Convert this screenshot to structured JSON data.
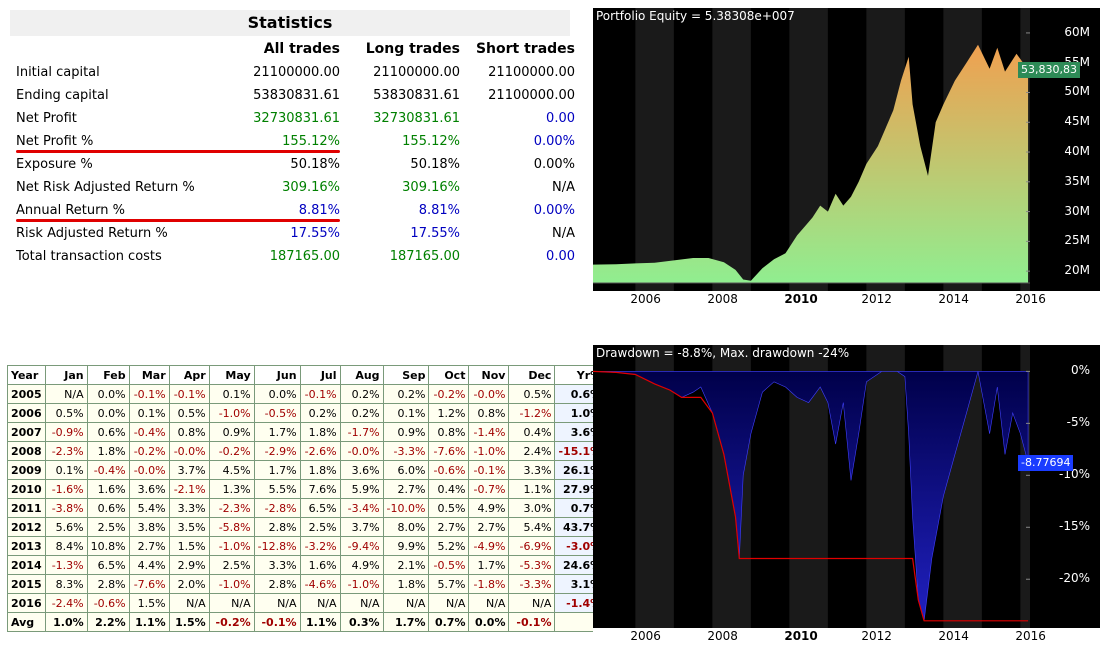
{
  "statistics": {
    "title": "Statistics",
    "headers": [
      "All trades",
      "Long trades",
      "Short trades"
    ],
    "rows": [
      {
        "label": "Initial capital",
        "values": [
          "21100000.00",
          "21100000.00",
          "21100000.00"
        ],
        "colors": [
          "black",
          "black",
          "black"
        ]
      },
      {
        "label": "Ending capital",
        "values": [
          "53830831.61",
          "53830831.61",
          "21100000.00"
        ],
        "colors": [
          "black",
          "black",
          "black"
        ]
      },
      {
        "label": "Net Profit",
        "values": [
          "32730831.61",
          "32730831.61",
          "0.00"
        ],
        "colors": [
          "green",
          "green",
          "blue"
        ]
      },
      {
        "label": "Net Profit %",
        "values": [
          "155.12%",
          "155.12%",
          "0.00%"
        ],
        "colors": [
          "green",
          "green",
          "blue"
        ]
      },
      {
        "label": "Exposure %",
        "values": [
          "50.18%",
          "50.18%",
          "0.00%"
        ],
        "colors": [
          "black",
          "black",
          "black"
        ]
      },
      {
        "label": "Net Risk Adjusted Return %",
        "values": [
          "309.16%",
          "309.16%",
          "N/A"
        ],
        "colors": [
          "green",
          "green",
          "black"
        ]
      },
      {
        "label": "Annual Return %",
        "values": [
          "8.81%",
          "8.81%",
          "0.00%"
        ],
        "colors": [
          "blue",
          "blue",
          "blue"
        ]
      },
      {
        "label": "Risk Adjusted Return %",
        "values": [
          "17.55%",
          "17.55%",
          "N/A"
        ],
        "colors": [
          "blue",
          "blue",
          "black"
        ]
      },
      {
        "label": "Total transaction costs",
        "values": [
          "187165.00",
          "187165.00",
          "0.00"
        ],
        "colors": [
          "green",
          "green",
          "blue"
        ]
      }
    ]
  },
  "monthly": {
    "headers": [
      "Year",
      "Jan",
      "Feb",
      "Mar",
      "Apr",
      "May",
      "Jun",
      "Jul",
      "Aug",
      "Sep",
      "Oct",
      "Nov",
      "Dec",
      "Yr%"
    ],
    "rows": [
      [
        "2005",
        "N/A",
        "0.0%",
        "-0.1%",
        "-0.1%",
        "0.1%",
        "0.0%",
        "-0.1%",
        "0.2%",
        "0.2%",
        "-0.2%",
        "-0.0%",
        "0.5%",
        "0.6%"
      ],
      [
        "2006",
        "0.5%",
        "0.0%",
        "0.1%",
        "0.5%",
        "-1.0%",
        "-0.5%",
        "0.2%",
        "0.2%",
        "0.1%",
        "1.2%",
        "0.8%",
        "-1.2%",
        "1.0%"
      ],
      [
        "2007",
        "-0.9%",
        "0.6%",
        "-0.4%",
        "0.8%",
        "0.9%",
        "1.7%",
        "1.8%",
        "-1.7%",
        "0.9%",
        "0.8%",
        "-1.4%",
        "0.4%",
        "3.6%"
      ],
      [
        "2008",
        "-2.3%",
        "1.8%",
        "-0.2%",
        "-0.0%",
        "-0.2%",
        "-2.9%",
        "-2.6%",
        "-0.0%",
        "-3.3%",
        "-7.6%",
        "-1.0%",
        "2.4%",
        "-15.1%"
      ],
      [
        "2009",
        "0.1%",
        "-0.4%",
        "-0.0%",
        "3.7%",
        "4.5%",
        "1.7%",
        "1.8%",
        "3.6%",
        "6.0%",
        "-0.6%",
        "-0.1%",
        "3.3%",
        "26.1%"
      ],
      [
        "2010",
        "-1.6%",
        "1.6%",
        "3.6%",
        "-2.1%",
        "1.3%",
        "5.5%",
        "7.6%",
        "5.9%",
        "2.7%",
        "0.4%",
        "-0.7%",
        "1.1%",
        "27.9%"
      ],
      [
        "2011",
        "-3.8%",
        "0.6%",
        "5.4%",
        "3.3%",
        "-2.3%",
        "-2.8%",
        "6.5%",
        "-3.4%",
        "-10.0%",
        "0.5%",
        "4.9%",
        "3.0%",
        "0.7%"
      ],
      [
        "2012",
        "5.6%",
        "2.5%",
        "3.8%",
        "3.5%",
        "-5.8%",
        "2.8%",
        "2.5%",
        "3.7%",
        "8.0%",
        "2.7%",
        "2.7%",
        "5.4%",
        "43.7%"
      ],
      [
        "2013",
        "8.4%",
        "10.8%",
        "2.7%",
        "1.5%",
        "-1.0%",
        "-12.8%",
        "-3.2%",
        "-9.4%",
        "9.9%",
        "5.2%",
        "-4.9%",
        "-6.9%",
        "-3.0%"
      ],
      [
        "2014",
        "-1.3%",
        "6.5%",
        "4.4%",
        "2.9%",
        "2.5%",
        "3.3%",
        "1.6%",
        "4.9%",
        "2.1%",
        "-0.5%",
        "1.7%",
        "-5.3%",
        "24.6%"
      ],
      [
        "2015",
        "8.3%",
        "2.8%",
        "-7.6%",
        "2.0%",
        "-1.0%",
        "2.8%",
        "-4.6%",
        "-1.0%",
        "1.8%",
        "5.7%",
        "-1.8%",
        "-3.3%",
        "3.1%"
      ],
      [
        "2016",
        "-2.4%",
        "-0.6%",
        "1.5%",
        "N/A",
        "N/A",
        "N/A",
        "N/A",
        "N/A",
        "N/A",
        "N/A",
        "N/A",
        "N/A",
        "-1.4%"
      ]
    ],
    "avg": [
      "Avg",
      "1.0%",
      "2.2%",
      "1.1%",
      "1.5%",
      "-0.2%",
      "-0.1%",
      "1.1%",
      "0.3%",
      "1.7%",
      "0.7%",
      "0.0%",
      "-0.1%",
      ""
    ]
  },
  "colors": {
    "equity_top": "#f0a050",
    "equity_bottom": "#90ee90",
    "drawdown_fill": "#0a0a8a",
    "max_dd_line": "#e00000",
    "last_value_equity": "#2e8b57",
    "last_value_dd": "#1a3cff"
  },
  "chart_data": [
    {
      "type": "area",
      "title": "Portfolio Equity = 5.38308e+007",
      "last_value_label": "53,830,83",
      "x_ticks": [
        "2006",
        "2008",
        "2010",
        "2012",
        "2014",
        "2016"
      ],
      "y_ticks": [
        "20M",
        "25M",
        "30M",
        "35M",
        "40M",
        "45M",
        "50M",
        "55M",
        "60M"
      ],
      "ylim": [
        17000000,
        61500000
      ],
      "xlim": [
        2004.9,
        2016.25
      ],
      "x": [
        2004.9,
        2005.5,
        2006.0,
        2006.5,
        2007.0,
        2007.5,
        2007.9,
        2008.3,
        2008.6,
        2008.8,
        2009.0,
        2009.3,
        2009.6,
        2009.9,
        2010.2,
        2010.4,
        2010.6,
        2010.8,
        2011.0,
        2011.2,
        2011.4,
        2011.6,
        2011.8,
        2012.0,
        2012.3,
        2012.5,
        2012.7,
        2012.9,
        2013.1,
        2013.2,
        2013.4,
        2013.6,
        2013.8,
        2014.0,
        2014.3,
        2014.6,
        2014.9,
        2015.2,
        2015.4,
        2015.6,
        2015.9,
        2016.2
      ],
      "series": [
        {
          "values": [
            21100000,
            21150000,
            21300000,
            21400000,
            21800000,
            22200000,
            22200000,
            21500000,
            20200000,
            18600000,
            18400000,
            20500000,
            22000000,
            23000000,
            26000000,
            27500000,
            29000000,
            31000000,
            30000000,
            33000000,
            31000000,
            32500000,
            35000000,
            38000000,
            41000000,
            44000000,
            47000000,
            52000000,
            56000000,
            48000000,
            41000000,
            36000000,
            45000000,
            48000000,
            52000000,
            55000000,
            58000000,
            54000000,
            57500000,
            53500000,
            56500000,
            53830831
          ]
        }
      ]
    },
    {
      "type": "area",
      "title": "Drawdown = -8.8%, Max. drawdown -24%",
      "last_value_label": "-8.77694",
      "x_ticks": [
        "2006",
        "2008",
        "2010",
        "2012",
        "2014",
        "2016"
      ],
      "y_ticks": [
        "0%",
        "-5%",
        "-10%",
        "-15%",
        "-20%"
      ],
      "ylim": [
        -24.5,
        1
      ],
      "xlim": [
        2004.9,
        2016.25
      ],
      "x": [
        2004.9,
        2005.5,
        2006.0,
        2006.5,
        2006.9,
        2007.2,
        2007.5,
        2007.7,
        2008.0,
        2008.3,
        2008.6,
        2008.7,
        2008.8,
        2009.0,
        2009.3,
        2009.6,
        2009.9,
        2010.2,
        2010.5,
        2010.8,
        2011.0,
        2011.2,
        2011.4,
        2011.6,
        2011.8,
        2012.0,
        2012.4,
        2012.8,
        2013.0,
        2013.1,
        2013.2,
        2013.35,
        2013.5,
        2013.7,
        2014.0,
        2014.3,
        2014.6,
        2014.9,
        2015.2,
        2015.4,
        2015.6,
        2015.8,
        2016.0,
        2016.2
      ],
      "series": [
        {
          "values": [
            0,
            -0.1,
            -0.3,
            -1.2,
            -1.8,
            -2.5,
            -2.0,
            -1.5,
            -4.0,
            -8.0,
            -14.0,
            -18.0,
            -10.0,
            -6.0,
            -2.0,
            -1.0,
            -1.5,
            -2.5,
            -3.0,
            -1.5,
            -3.0,
            -7.0,
            -3.0,
            -10.5,
            -6.0,
            -1.0,
            0,
            0,
            -0.5,
            -6.0,
            -14.0,
            -22.0,
            -24.0,
            -18.0,
            -12.0,
            -8.0,
            -4.0,
            0,
            -6.0,
            -1.5,
            -8.0,
            -4.0,
            -6.0,
            -8.8
          ]
        },
        {
          "name": "Max. drawdown",
          "values": [
            0,
            -0.1,
            -0.3,
            -1.2,
            -1.8,
            -2.5,
            -2.5,
            -2.5,
            -4.0,
            -8.0,
            -14.0,
            -18.0,
            -18.0,
            -18.0,
            -18.0,
            -18.0,
            -18.0,
            -18.0,
            -18.0,
            -18.0,
            -18.0,
            -18.0,
            -18.0,
            -18.0,
            -18.0,
            -18.0,
            -18.0,
            -18.0,
            -18.0,
            -18.0,
            -18.0,
            -22.0,
            -24.0,
            -24.0,
            -24.0,
            -24.0,
            -24.0,
            -24.0,
            -24.0,
            -24.0,
            -24.0,
            -24.0,
            -24.0,
            -24.0
          ]
        }
      ]
    }
  ]
}
